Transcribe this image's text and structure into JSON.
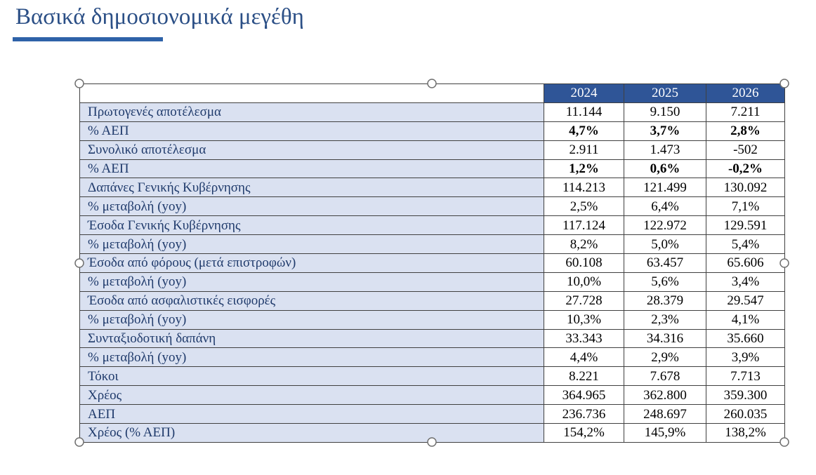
{
  "title": "Βασικά δημοσιονομικά μεγέθη",
  "table": {
    "header": [
      "2024",
      "2025",
      "2026"
    ],
    "rows": [
      {
        "label": "Πρωτογενές αποτέλεσμα",
        "cells": [
          "11.144",
          "9.150",
          "7.211"
        ]
      },
      {
        "label": "% ΑΕΠ",
        "cells": [
          "4,7%",
          "3,7%",
          "2,8%"
        ],
        "bold": true
      },
      {
        "label": "Συνολικό αποτέλεσμα",
        "cells": [
          "2.911",
          "1.473",
          "-502"
        ]
      },
      {
        "label": "% ΑΕΠ",
        "cells": [
          "1,2%",
          "0,6%",
          "-0,2%"
        ],
        "bold": true
      },
      {
        "label": "Δαπάνες Γενικής Κυβέρνησης",
        "cells": [
          "114.213",
          "121.499",
          "130.092"
        ]
      },
      {
        "label": "% μεταβολή (yoy)",
        "cells": [
          "2,5%",
          "6,4%",
          "7,1%"
        ]
      },
      {
        "label": "Έσοδα Γενικής Κυβέρνησης",
        "cells": [
          "117.124",
          "122.972",
          "129.591"
        ]
      },
      {
        "label": "% μεταβολή (yoy)",
        "cells": [
          "8,2%",
          "5,0%",
          "5,4%"
        ]
      },
      {
        "label": "Έσοδα από φόρους (μετά επιστροφών)",
        "cells": [
          "60.108",
          "63.457",
          "65.606"
        ]
      },
      {
        "label": "% μεταβολή (yoy)",
        "cells": [
          "10,0%",
          "5,6%",
          "3,4%"
        ]
      },
      {
        "label": "Έσοδα από ασφαλιστικές εισφορές",
        "cells": [
          "27.728",
          "28.379",
          "29.547"
        ]
      },
      {
        "label": "% μεταβολή (yoy)",
        "cells": [
          "10,3%",
          "2,3%",
          "4,1%"
        ]
      },
      {
        "label": "Συνταξιοδοτική δαπάνη",
        "cells": [
          "33.343",
          "34.316",
          "35.660"
        ]
      },
      {
        "label": "% μεταβολή (yoy)",
        "cells": [
          "4,4%",
          "2,9%",
          "3,9%"
        ]
      },
      {
        "label": "Τόκοι",
        "cells": [
          "8.221",
          "7.678",
          "7.713"
        ]
      },
      {
        "label": "Χρέος",
        "cells": [
          "364.965",
          "362.800",
          "359.300"
        ]
      },
      {
        "label": "ΑΕΠ",
        "cells": [
          "236.736",
          "248.697",
          "260.035"
        ]
      },
      {
        "label": "Χρέος (% ΑΕΠ)",
        "cells": [
          "154,2%",
          "145,9%",
          "138,2%"
        ]
      }
    ]
  }
}
